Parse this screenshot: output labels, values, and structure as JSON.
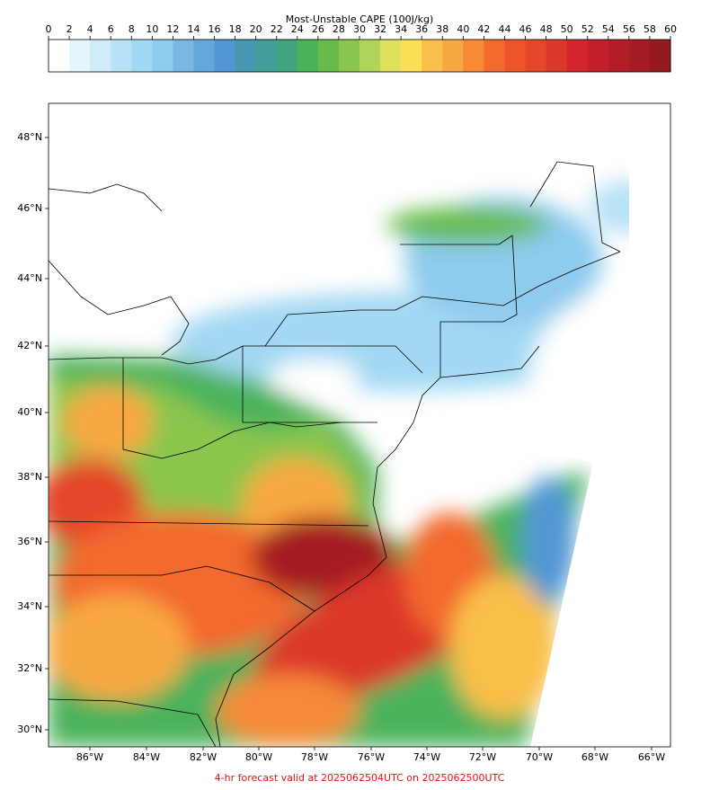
{
  "colorbar": {
    "title": "Most-Unstable CAPE (100J/kg)",
    "lim": [
      0,
      60
    ],
    "ticks": [
      0,
      2,
      4,
      6,
      8,
      10,
      12,
      14,
      16,
      18,
      20,
      22,
      24,
      26,
      28,
      30,
      32,
      34,
      36,
      38,
      40,
      42,
      44,
      46,
      48,
      50,
      52,
      54,
      56,
      58,
      60
    ],
    "colors": [
      "#ffffff",
      "#e6f5fc",
      "#d0ecf9",
      "#b8e2f6",
      "#a2d8f3",
      "#8ecbed",
      "#7ab8e2",
      "#65a7dc",
      "#5197d3",
      "#4a97b3",
      "#459e9a",
      "#41a57f",
      "#4bb25b",
      "#66bb4a",
      "#8bc64e",
      "#b0d45b",
      "#dce05b",
      "#fbe057",
      "#f9bf4a",
      "#f8a843",
      "#f68a37",
      "#f3692e",
      "#ec552a",
      "#e44729",
      "#db372b",
      "#d3252d",
      "#c4202b",
      "#b31d28",
      "#a41b24",
      "#941a1f"
    ]
  },
  "map": {
    "lat_labels": [
      "48°N",
      "46°N",
      "44°N",
      "42°N",
      "40°N",
      "38°N",
      "36°N",
      "34°N",
      "32°N",
      "30°N"
    ],
    "lon_labels": [
      "86°W",
      "84°W",
      "82°W",
      "80°W",
      "78°W",
      "76°W",
      "74°W",
      "72°W",
      "70°W",
      "68°W",
      "66°W"
    ]
  },
  "footer": "4-hr forecast valid at 2025062504UTC on 2025062500UTC"
}
